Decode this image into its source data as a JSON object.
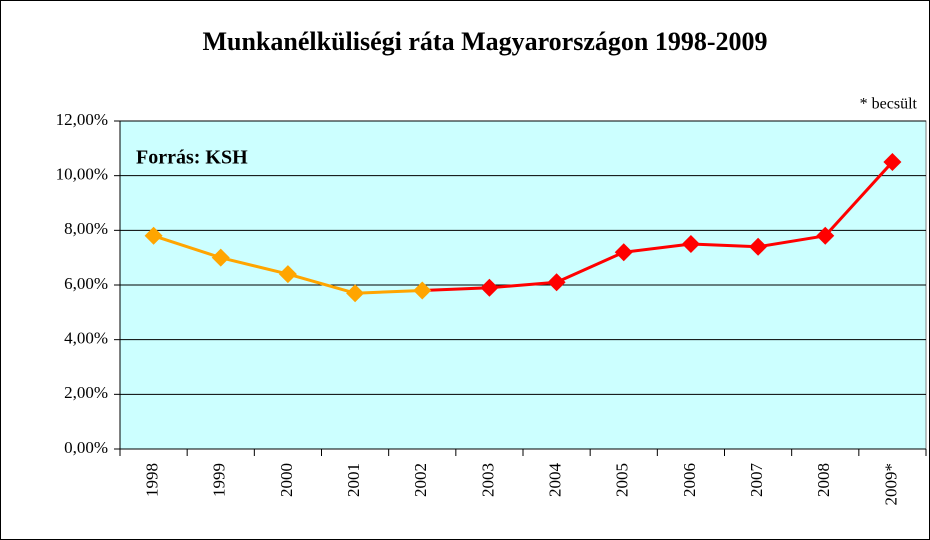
{
  "chart_data": {
    "type": "line",
    "title": "Munkanélküliségi ráta Magyarországon 1998-2009",
    "annotations": [
      "Forrás: KSH",
      "* becsült"
    ],
    "categories": [
      "1998",
      "1999",
      "2000",
      "2001",
      "2002",
      "2003",
      "2004",
      "2005",
      "2006",
      "2007",
      "2008",
      "2009*"
    ],
    "values": [
      7.8,
      7.0,
      6.4,
      5.7,
      5.8,
      5.9,
      6.1,
      7.2,
      7.5,
      7.4,
      7.8,
      10.5
    ],
    "colors": [
      "#ffa500",
      "#ffa500",
      "#ffa500",
      "#ffa500",
      "#ffa500",
      "#ff0000",
      "#ff0000",
      "#ff0000",
      "#ff0000",
      "#ff0000",
      "#ff0000",
      "#ff0000"
    ],
    "ylim": [
      0,
      12
    ],
    "yticks": [
      {
        "value": 0,
        "label": "0,00%"
      },
      {
        "value": 2,
        "label": "2,00%"
      },
      {
        "value": 4,
        "label": "4,00%"
      },
      {
        "value": 6,
        "label": "6,00%"
      },
      {
        "value": 8,
        "label": "8,00%"
      },
      {
        "value": 10,
        "label": "10,00%"
      },
      {
        "value": 12,
        "label": "12,00%"
      }
    ],
    "grid": true,
    "background": "#ccffff"
  }
}
